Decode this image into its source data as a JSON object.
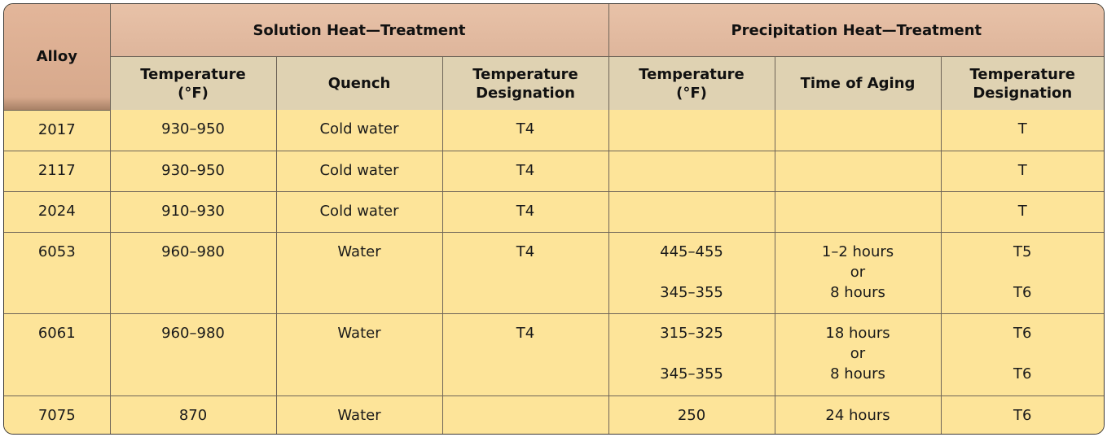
{
  "table": {
    "alloy_header": "Alloy",
    "solution_group": "Solution Heat—Treatment",
    "precipitation_group": "Precipitation Heat—Treatment",
    "sub_headers": {
      "sol_temp": [
        "Temperature",
        "(°F)"
      ],
      "quench": "Quench",
      "sol_designation": [
        "Temperature",
        "Designation"
      ],
      "pre_temp": [
        "Temperature",
        "(°F)"
      ],
      "aging": "Time of Aging",
      "pre_designation": [
        "Temperature",
        "Designation"
      ]
    },
    "rows": [
      {
        "alloy": "2017",
        "sol_temp": "930–950",
        "quench": "Cold water",
        "sol_designation": "T4",
        "pre_temp": [],
        "aging": [],
        "pre_designation": [
          "T"
        ]
      },
      {
        "alloy": "2117",
        "sol_temp": "930–950",
        "quench": "Cold water",
        "sol_designation": "T4",
        "pre_temp": [],
        "aging": [],
        "pre_designation": [
          "T"
        ]
      },
      {
        "alloy": "2024",
        "sol_temp": "910–930",
        "quench": "Cold water",
        "sol_designation": "T4",
        "pre_temp": [],
        "aging": [],
        "pre_designation": [
          "T"
        ]
      },
      {
        "alloy": "6053",
        "sol_temp": "960–980",
        "quench": "Water",
        "sol_designation": "T4",
        "pre_temp": [
          "445–455",
          "345–355"
        ],
        "aging": [
          "1–2 hours",
          "or",
          "8 hours"
        ],
        "pre_designation": [
          "T5",
          "T6"
        ]
      },
      {
        "alloy": "6061",
        "sol_temp": "960–980",
        "quench": "Water",
        "sol_designation": "T4",
        "pre_temp": [
          "315–325",
          "345–355"
        ],
        "aging": [
          "18 hours",
          "or",
          "8 hours"
        ],
        "pre_designation": [
          "T6",
          "T6"
        ]
      },
      {
        "alloy": "7075",
        "sol_temp": "870",
        "quench": "Water",
        "sol_designation": "",
        "pre_temp": [
          "250"
        ],
        "aging": [
          "24 hours"
        ],
        "pre_designation": [
          "T6"
        ]
      }
    ]
  }
}
